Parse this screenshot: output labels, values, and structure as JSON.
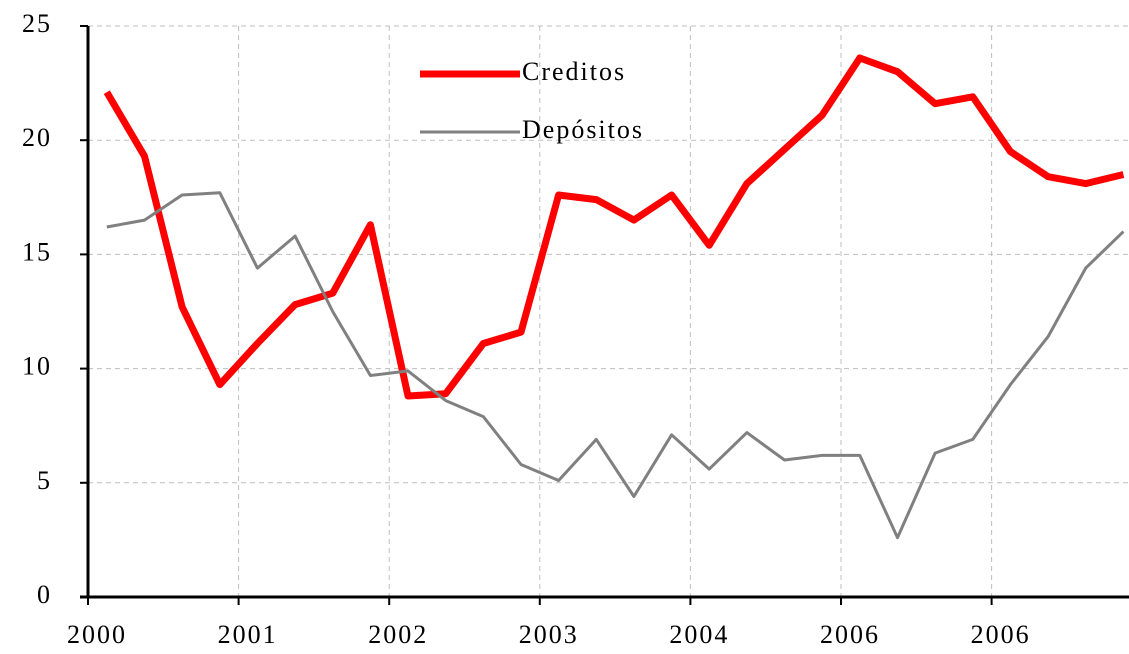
{
  "chart_data": {
    "type": "line",
    "xticks": [
      "2000",
      "2001",
      "2002",
      "2003",
      "2004",
      "2006",
      "2006"
    ],
    "points_per_tick": 4,
    "series": [
      {
        "name": "Creditos",
        "color": "#ff0000",
        "values": [
          22.1,
          19.3,
          12.7,
          9.3,
          11.1,
          12.8,
          13.3,
          16.3,
          8.8,
          8.9,
          11.1,
          11.6,
          17.6,
          17.4,
          16.5,
          17.6,
          15.4,
          18.1,
          19.6,
          21.1,
          23.6,
          23.0,
          21.6,
          21.9,
          19.5,
          18.4,
          18.1,
          18.5
        ]
      },
      {
        "name": "Depósitos",
        "color": "#808080",
        "values": [
          16.2,
          16.5,
          17.6,
          17.7,
          14.4,
          15.8,
          12.5,
          9.7,
          9.9,
          8.6,
          7.9,
          5.8,
          5.1,
          6.9,
          4.4,
          7.1,
          5.6,
          7.2,
          6.0,
          6.2,
          6.2,
          2.6,
          6.3,
          6.9,
          9.3,
          11.4,
          14.4,
          16.0
        ]
      }
    ],
    "ylim": [
      0,
      25
    ],
    "yticks": [
      0,
      5,
      10,
      15,
      20,
      25
    ],
    "grid": true,
    "legend": "top"
  }
}
